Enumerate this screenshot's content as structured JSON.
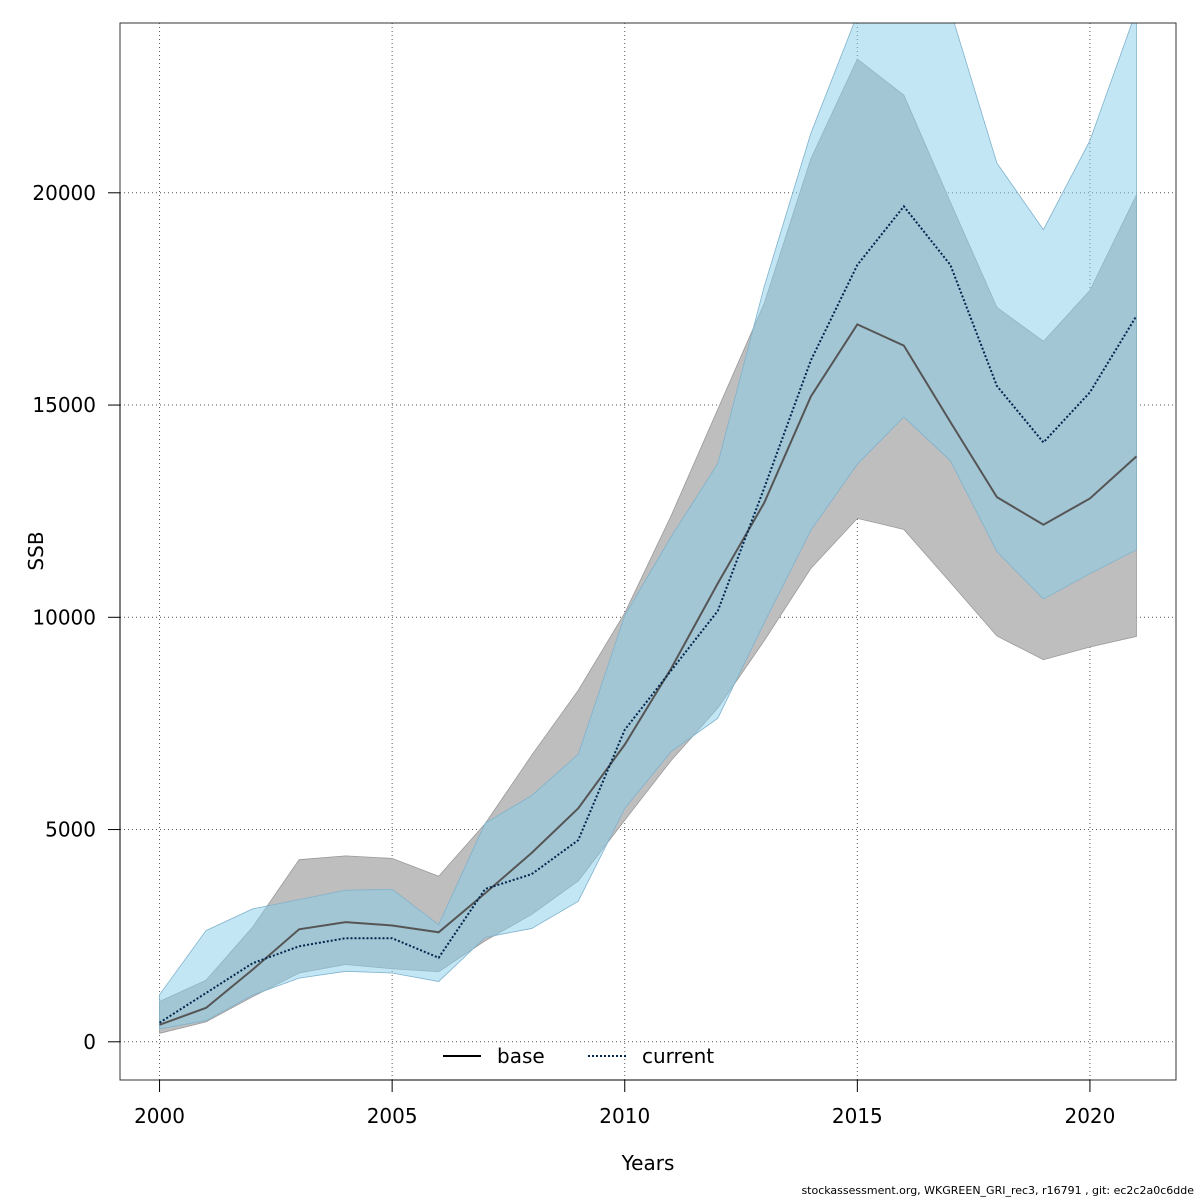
{
  "chart_data": {
    "type": "line",
    "xlabel": "Years",
    "ylabel": "SSB",
    "xlim": [
      1999.15,
      2021.85
    ],
    "ylim": [
      -900,
      24000
    ],
    "x_ticks": [
      2000,
      2005,
      2010,
      2015,
      2020
    ],
    "y_ticks": [
      0,
      5000,
      10000,
      15000,
      20000
    ],
    "grid": true,
    "legend_position": "bottom-center",
    "colors": {
      "base_band": "#bebebe",
      "current_band": "#87ceeb",
      "base_line": "#555555",
      "current_line": "#00264d"
    },
    "x": [
      2000,
      2001,
      2002,
      2003,
      2004,
      2005,
      2006,
      2007,
      2008,
      2009,
      2010,
      2011,
      2012,
      2013,
      2014,
      2015,
      2016,
      2017,
      2018,
      2019,
      2020,
      2021
    ],
    "series": [
      {
        "name": "base",
        "line_style": "solid",
        "values": [
          400,
          800,
          1700,
          2650,
          2820,
          2740,
          2580,
          3500,
          4450,
          5500,
          7000,
          8800,
          10800,
          12700,
          15200,
          16900,
          16400,
          14600,
          12830,
          12180,
          12800,
          13790
        ],
        "lower": [
          200,
          470,
          1060,
          1620,
          1820,
          1720,
          1650,
          2380,
          3000,
          3790,
          5220,
          6630,
          7860,
          9450,
          11150,
          12330,
          12070,
          10820,
          9560,
          9000,
          9300,
          9550
        ],
        "upper": [
          950,
          1450,
          2700,
          4290,
          4380,
          4320,
          3900,
          5140,
          6750,
          8280,
          10100,
          12400,
          14900,
          17400,
          20800,
          23150,
          22300,
          19780,
          17300,
          16500,
          17700,
          19950
        ]
      },
      {
        "name": "current",
        "line_style": "dotted",
        "values": [
          450,
          1150,
          1850,
          2250,
          2440,
          2440,
          1980,
          3600,
          3950,
          4750,
          7350,
          8750,
          10150,
          13050,
          16050,
          18300,
          19680,
          18300,
          15450,
          14120,
          15300,
          17100
        ],
        "lower": [
          300,
          500,
          1100,
          1500,
          1660,
          1620,
          1420,
          2460,
          2670,
          3310,
          5500,
          6840,
          7620,
          9880,
          12050,
          13610,
          14720,
          13690,
          11550,
          10430,
          11030,
          11590
        ],
        "upper": [
          1110,
          2620,
          3130,
          3350,
          3570,
          3590,
          2760,
          5150,
          5800,
          6770,
          10040,
          11900,
          13620,
          17800,
          21400,
          24200,
          24600,
          24300,
          20700,
          19130,
          21230,
          24300
        ]
      }
    ]
  },
  "footer_text": "stockassessment.org, WKGREEN_GRI_rec3, r16791 , git: ec2c2a0c6dde"
}
